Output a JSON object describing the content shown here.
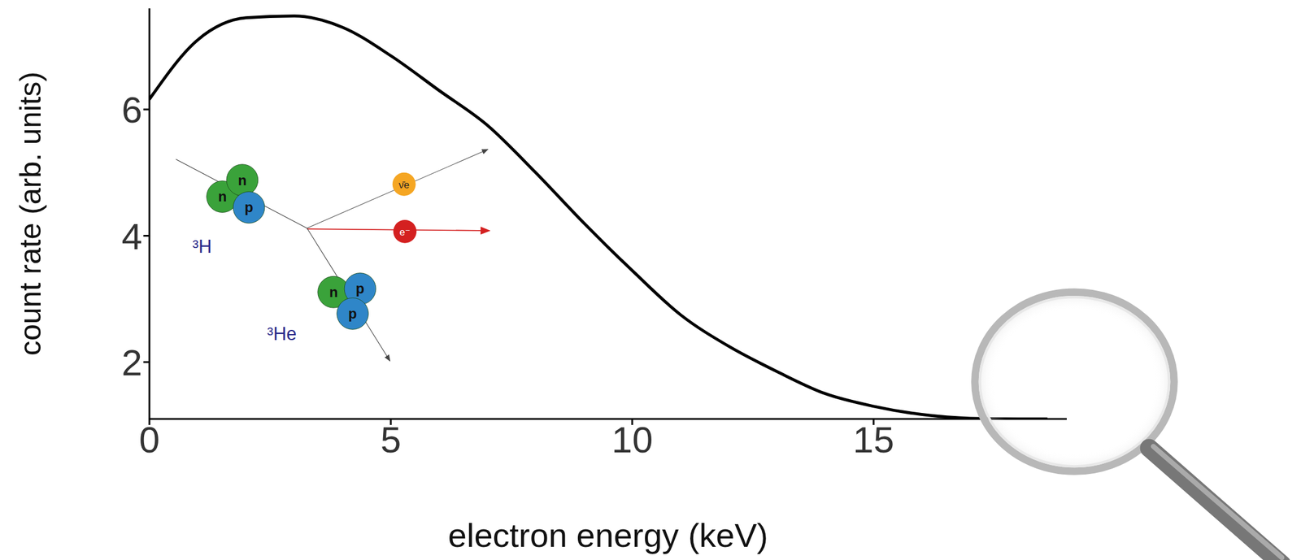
{
  "chart_data": {
    "type": "line",
    "xlabel": "electron energy (keV)",
    "ylabel": "count rate (arb. units)",
    "x": [
      0,
      1,
      2,
      3,
      4,
      5,
      6,
      7,
      8,
      9,
      10,
      11,
      12,
      13,
      14,
      15,
      16,
      17,
      18,
      18.6
    ],
    "values": [
      6.16,
      7.1,
      7.45,
      7.48,
      7.3,
      6.85,
      6.3,
      5.75,
      5.0,
      4.2,
      3.45,
      2.75,
      2.25,
      1.85,
      1.5,
      1.3,
      1.17,
      1.11,
      1.1,
      1.1
    ],
    "color": "#000000",
    "xlim": [
      0,
      19
    ],
    "xticks": [
      0,
      5,
      10,
      15
    ],
    "ylim": [
      1.1,
      7.6
    ],
    "yticks": [
      2,
      4,
      6
    ],
    "grid": false,
    "nuclei": [
      {
        "label": "³H",
        "nucleons": [
          "n",
          "n",
          "p"
        ]
      },
      {
        "label": "³He",
        "nucleons": [
          "n",
          "p",
          "p"
        ]
      }
    ],
    "particles": [
      "ν̄e",
      "e⁻"
    ]
  }
}
